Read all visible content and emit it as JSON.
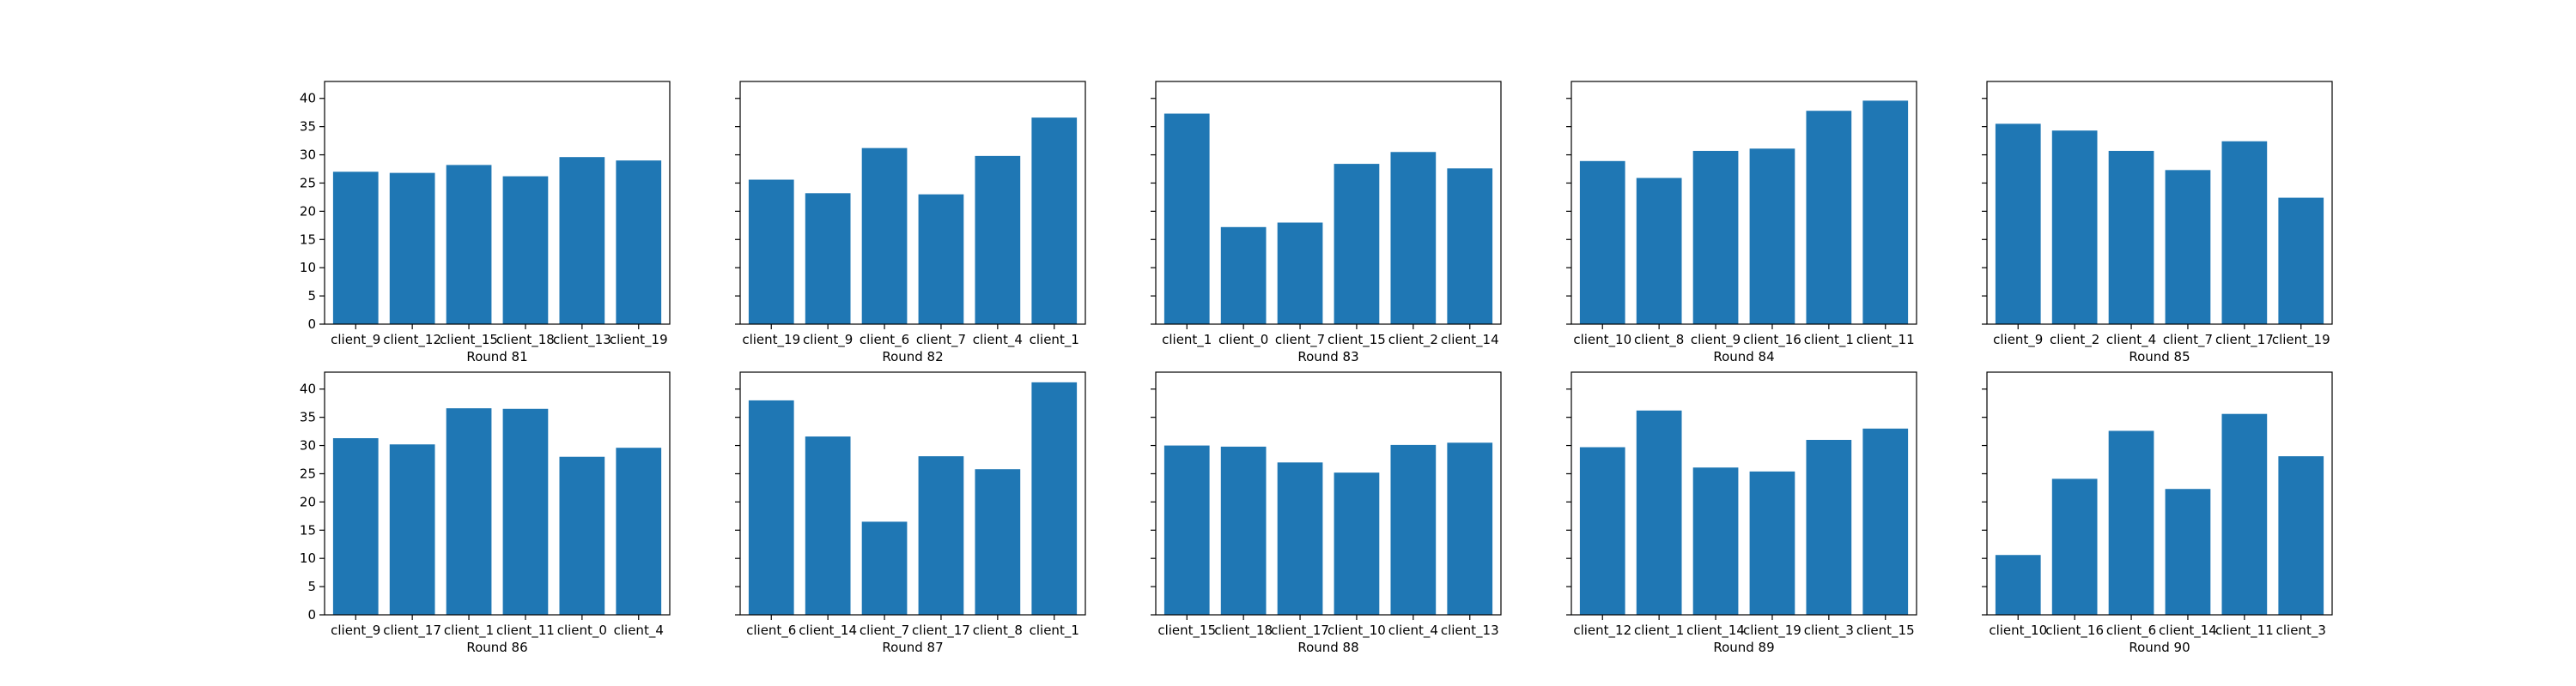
{
  "colors": {
    "bar": "#1f77b4",
    "axes": "#000000",
    "background": "#ffffff"
  },
  "chart_data": [
    {
      "type": "bar",
      "xlabel": "Round 81",
      "ylim": [
        0,
        43
      ],
      "yticks": [
        0,
        5,
        10,
        15,
        20,
        25,
        30,
        35,
        40
      ],
      "categories": [
        "client_9",
        "client_12",
        "client_15",
        "client_18",
        "client_13",
        "client_19"
      ],
      "values": [
        27,
        26.8,
        28.2,
        26.2,
        29.6,
        29
      ]
    },
    {
      "type": "bar",
      "xlabel": "Round 82",
      "ylim": [
        0,
        43
      ],
      "yticks": [
        0,
        5,
        10,
        15,
        20,
        25,
        30,
        35,
        40
      ],
      "categories": [
        "client_19",
        "client_9",
        "client_6",
        "client_7",
        "client_4",
        "client_1"
      ],
      "values": [
        25.6,
        23.2,
        31.2,
        23,
        29.8,
        36.6
      ]
    },
    {
      "type": "bar",
      "xlabel": "Round 83",
      "ylim": [
        0,
        43
      ],
      "yticks": [
        0,
        5,
        10,
        15,
        20,
        25,
        30,
        35,
        40
      ],
      "categories": [
        "client_1",
        "client_0",
        "client_7",
        "client_15",
        "client_2",
        "client_14"
      ],
      "values": [
        37.3,
        17.2,
        18,
        28.4,
        30.5,
        27.6
      ]
    },
    {
      "type": "bar",
      "xlabel": "Round 84",
      "ylim": [
        0,
        43
      ],
      "yticks": [
        0,
        5,
        10,
        15,
        20,
        25,
        30,
        35,
        40
      ],
      "categories": [
        "client_10",
        "client_8",
        "client_9",
        "client_16",
        "client_1",
        "client_11"
      ],
      "values": [
        28.9,
        25.9,
        30.7,
        31.1,
        37.8,
        39.6
      ]
    },
    {
      "type": "bar",
      "xlabel": "Round 85",
      "ylim": [
        0,
        43
      ],
      "yticks": [
        0,
        5,
        10,
        15,
        20,
        25,
        30,
        35,
        40
      ],
      "categories": [
        "client_9",
        "client_2",
        "client_4",
        "client_7",
        "client_17",
        "client_19"
      ],
      "values": [
        35.5,
        34.3,
        30.7,
        27.3,
        32.4,
        22.4
      ]
    },
    {
      "type": "bar",
      "xlabel": "Round 86",
      "ylim": [
        0,
        43
      ],
      "yticks": [
        0,
        5,
        10,
        15,
        20,
        25,
        30,
        35,
        40
      ],
      "categories": [
        "client_9",
        "client_17",
        "client_1",
        "client_11",
        "client_0",
        "client_4"
      ],
      "values": [
        31.3,
        30.2,
        36.6,
        36.5,
        28,
        29.6
      ]
    },
    {
      "type": "bar",
      "xlabel": "Round 87",
      "ylim": [
        0,
        43
      ],
      "yticks": [
        0,
        5,
        10,
        15,
        20,
        25,
        30,
        35,
        40
      ],
      "categories": [
        "client_6",
        "client_14",
        "client_7",
        "client_17",
        "client_8",
        "client_1"
      ],
      "values": [
        38,
        31.6,
        16.5,
        28.1,
        25.8,
        41.2
      ]
    },
    {
      "type": "bar",
      "xlabel": "Round 88",
      "ylim": [
        0,
        43
      ],
      "yticks": [
        0,
        5,
        10,
        15,
        20,
        25,
        30,
        35,
        40
      ],
      "categories": [
        "client_15",
        "client_18",
        "client_17",
        "client_10",
        "client_4",
        "client_13"
      ],
      "values": [
        30,
        29.8,
        27,
        25.2,
        30.1,
        30.5
      ]
    },
    {
      "type": "bar",
      "xlabel": "Round 89",
      "ylim": [
        0,
        43
      ],
      "yticks": [
        0,
        5,
        10,
        15,
        20,
        25,
        30,
        35,
        40
      ],
      "categories": [
        "client_12",
        "client_1",
        "client_14",
        "client_19",
        "client_3",
        "client_15"
      ],
      "values": [
        29.7,
        36.2,
        26.1,
        25.4,
        31,
        33
      ]
    },
    {
      "type": "bar",
      "xlabel": "Round 90",
      "ylim": [
        0,
        43
      ],
      "yticks": [
        0,
        5,
        10,
        15,
        20,
        25,
        30,
        35,
        40
      ],
      "categories": [
        "client_10",
        "client_16",
        "client_6",
        "client_14",
        "client_11",
        "client_3"
      ],
      "values": [
        10.6,
        24.1,
        32.6,
        22.3,
        35.6,
        28.1
      ]
    }
  ]
}
